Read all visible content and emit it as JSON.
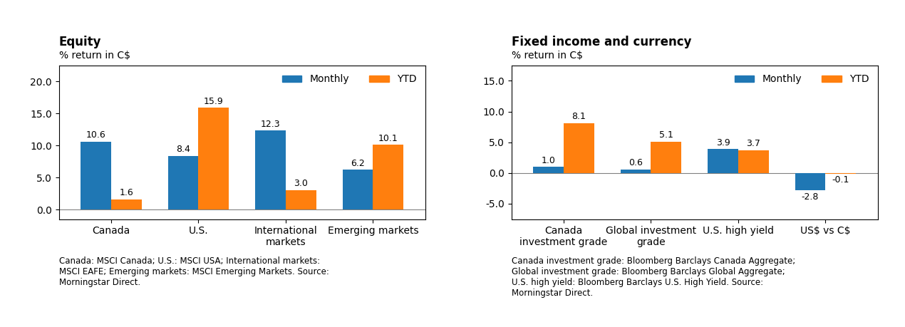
{
  "chart_data": [
    {
      "type": "bar",
      "title": "Equity",
      "subtitle": "% return in C$",
      "categories": [
        "Canada",
        "U.S.",
        "International\nmarkets",
        "Emerging markets"
      ],
      "series": [
        {
          "name": "Monthly",
          "values": [
            10.6,
            8.4,
            12.3,
            6.2
          ]
        },
        {
          "name": "YTD",
          "values": [
            1.6,
            15.9,
            3.0,
            10.1
          ]
        }
      ],
      "ylim": [
        -1.5,
        22.5
      ],
      "yticks": [
        {
          "value": 0,
          "label": "0.0"
        },
        {
          "value": 5,
          "label": "5.0"
        },
        {
          "value": 10,
          "label": "10.0"
        },
        {
          "value": 15,
          "label": "15.0"
        },
        {
          "value": 20,
          "label": "20.0"
        }
      ],
      "data_labels": true,
      "legend": "upper right",
      "grid": false,
      "annotations": [
        "Canada: MSCI Canada; U.S.: MSCI USA; International markets:\nMSCI EAFE; Emerging markets: MSCI Emerging Markets. Source:\nMorningstar Direct."
      ]
    },
    {
      "type": "bar",
      "title": "Fixed income and currency",
      "subtitle": "% return in C$",
      "categories": [
        "Canada\ninvestment grade",
        "Global investment\ngrade",
        "U.S. high yield",
        "US$ vs C$"
      ],
      "series": [
        {
          "name": "Monthly",
          "values": [
            1.0,
            0.6,
            3.9,
            -2.8
          ]
        },
        {
          "name": "YTD",
          "values": [
            8.1,
            5.1,
            3.7,
            -0.1
          ]
        }
      ],
      "ylim": [
        -7.5,
        17.5
      ],
      "yticks": [
        {
          "value": -5,
          "label": "-5.0"
        },
        {
          "value": 0,
          "label": "0.0"
        },
        {
          "value": 5,
          "label": "5.0"
        },
        {
          "value": 10,
          "label": "10.0"
        },
        {
          "value": 15,
          "label": "15.0"
        }
      ],
      "data_labels": true,
      "legend": "upper right",
      "grid": false,
      "annotations": [
        "Canada investment grade: Bloomberg Barclays Canada Aggregate;\nGlobal investment grade: Bloomberg Barclays Global Aggregate;\nU.S. high yield: Bloomberg Barclays U.S. High Yield. Source:\nMorningstar Direct."
      ]
    }
  ]
}
